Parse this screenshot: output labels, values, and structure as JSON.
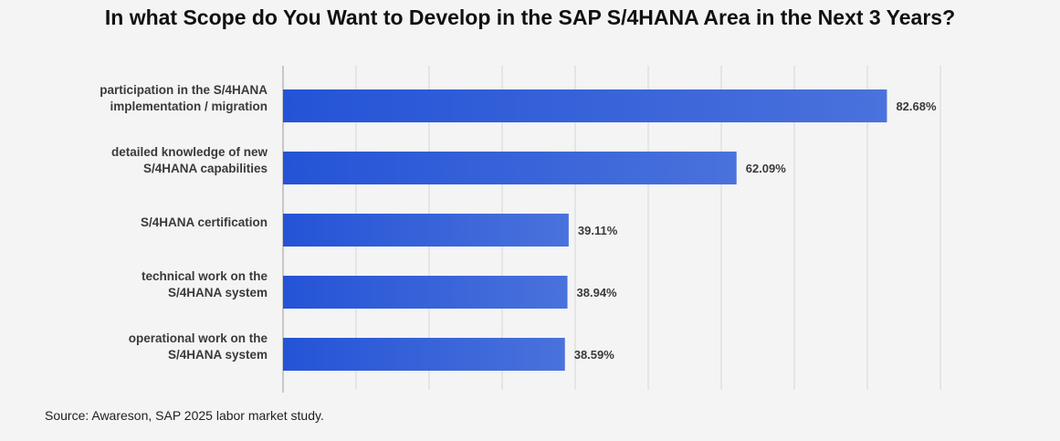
{
  "chart_data": {
    "type": "bar",
    "orientation": "horizontal",
    "title": "In what Scope do You Want to Develop in the SAP S/4HANA Area in the Next 3 Years?",
    "categories": [
      [
        "participation in the S/4HANA",
        "implementation / migration"
      ],
      [
        "detailed knowledge of new",
        "S/4HANA capabilities"
      ],
      [
        "S/4HANA certification"
      ],
      [
        "technical work on the",
        "S/4HANA system"
      ],
      [
        "operational work on the",
        "S/4HANA system"
      ]
    ],
    "values": [
      82.68,
      62.09,
      39.11,
      38.94,
      38.59
    ],
    "value_labels": [
      "82.68%",
      "62.09%",
      "39.11%",
      "38.94%",
      "38.59%"
    ],
    "xlim": [
      0,
      90
    ],
    "grid": true,
    "bar_color_start": "#2453d6",
    "bar_color_end": "#4a72dc"
  },
  "source": "Source: Awareson, SAP 2025 labor market study."
}
